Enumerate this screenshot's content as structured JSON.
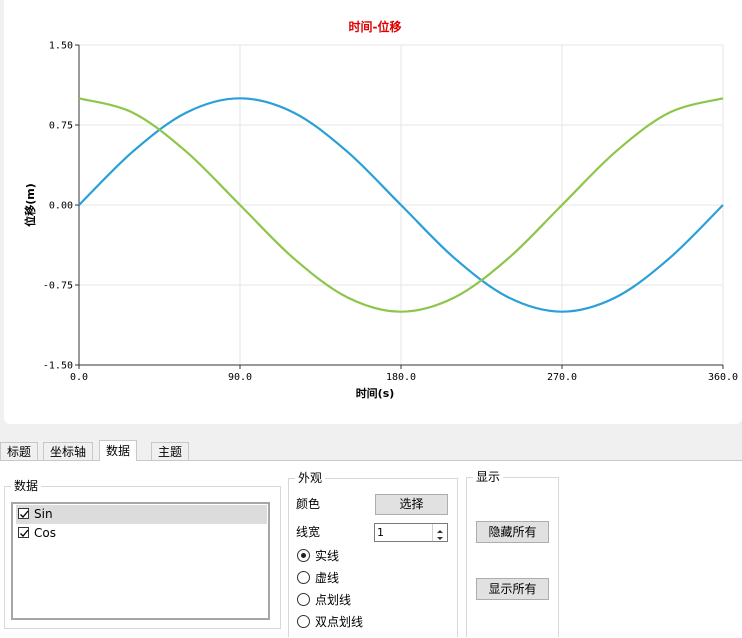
{
  "chart_data": {
    "type": "line",
    "title": "时间-位移",
    "xlabel": "时间(s)",
    "ylabel": "位移(m)",
    "xlim": [
      0,
      360
    ],
    "ylim": [
      -1.5,
      1.5
    ],
    "x_ticks": [
      "0.0",
      "90.0",
      "180.0",
      "270.0",
      "360.0"
    ],
    "y_ticks": [
      "1.50",
      "0.75",
      "0.00",
      "-0.75",
      "-1.50"
    ],
    "grid": true,
    "series": [
      {
        "name": "Sin",
        "color": "#2a9fd8",
        "x": [
          0,
          30,
          60,
          90,
          120,
          150,
          180,
          210,
          240,
          270,
          300,
          330,
          360
        ],
        "values": [
          0,
          0.5,
          0.866,
          1,
          0.866,
          0.5,
          0,
          -0.5,
          -0.866,
          -1,
          -0.866,
          -0.5,
          0
        ]
      },
      {
        "name": "Cos",
        "color": "#8dc64a",
        "x": [
          0,
          30,
          60,
          90,
          120,
          150,
          180,
          210,
          240,
          270,
          300,
          330,
          360
        ],
        "values": [
          1,
          0.866,
          0.5,
          0,
          -0.5,
          -0.866,
          -1,
          -0.866,
          -0.5,
          0,
          0.5,
          0.866,
          1
        ]
      }
    ]
  },
  "tabs": [
    {
      "label": "标题",
      "active": false
    },
    {
      "label": "坐标轴",
      "active": false
    },
    {
      "label": "数据",
      "active": true
    },
    {
      "label": "主题",
      "active": false
    }
  ],
  "data_group": {
    "title": "数据",
    "items": [
      {
        "label": "Sin",
        "checked": true,
        "selected": true
      },
      {
        "label": "Cos",
        "checked": true,
        "selected": false
      }
    ]
  },
  "appearance_group": {
    "title": "外观",
    "color_label": "颜色",
    "choose_button": "选择",
    "width_label": "线宽",
    "width_value": "1",
    "line_styles": [
      {
        "label": "实线",
        "checked": true
      },
      {
        "label": "虚线",
        "checked": false
      },
      {
        "label": "点划线",
        "checked": false
      },
      {
        "label": "双点划线",
        "checked": false
      }
    ]
  },
  "display_group": {
    "title": "显示",
    "hide_all": "隐藏所有",
    "show_all": "显示所有"
  }
}
